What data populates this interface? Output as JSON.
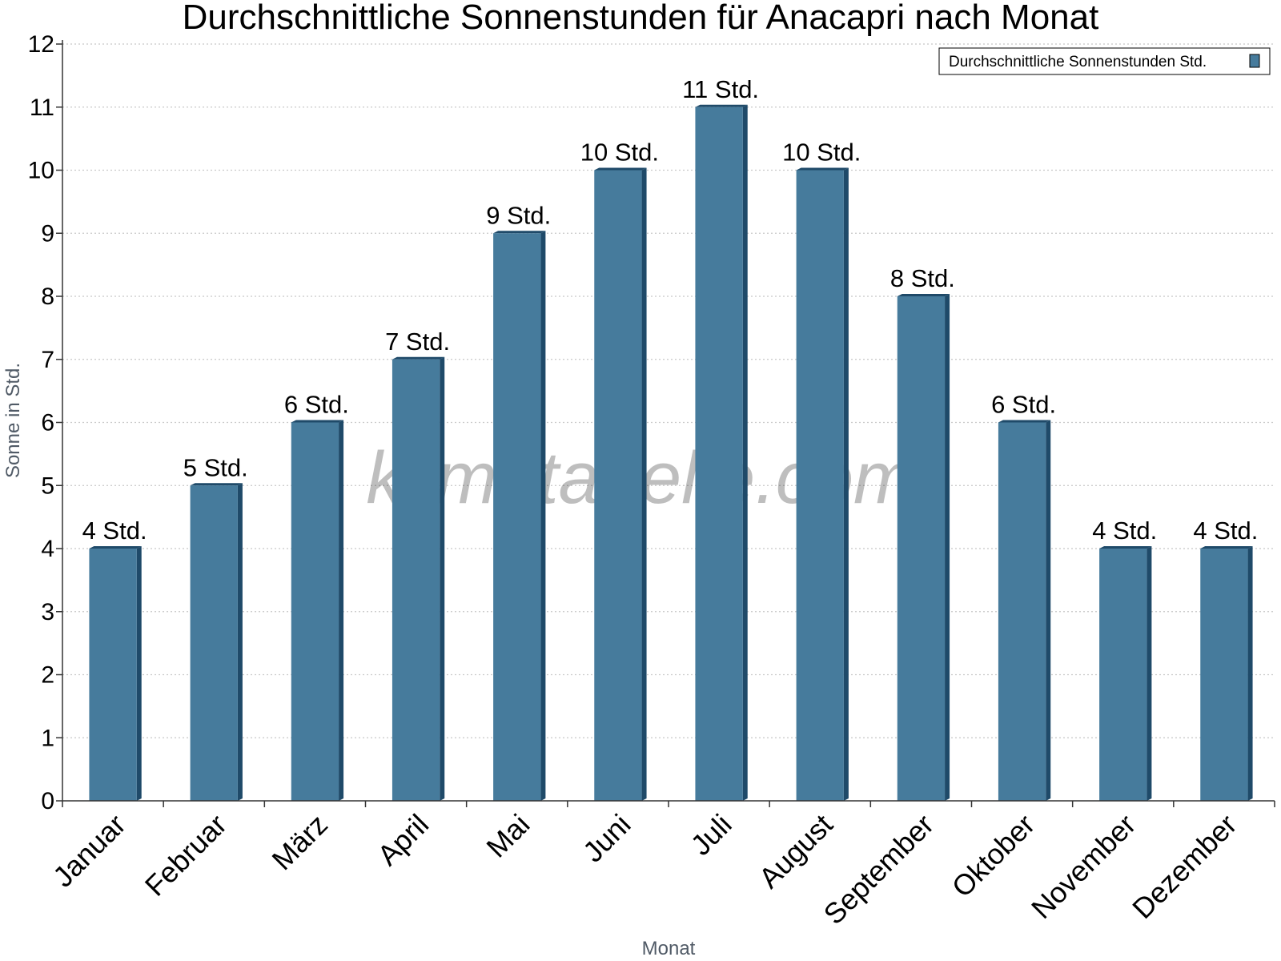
{
  "chart_data": {
    "type": "bar",
    "title": "Durchschnittliche Sonnenstunden für Anacapri nach Monat",
    "xlabel": "Monat",
    "ylabel": "Sonne in Std.",
    "categories": [
      "Januar",
      "Februar",
      "März",
      "April",
      "Mai",
      "Juni",
      "Juli",
      "August",
      "September",
      "Oktober",
      "November",
      "Dezember"
    ],
    "series": [
      {
        "name": "Durchschnittliche Sonnenstunden Std.",
        "values": [
          4,
          5,
          6,
          7,
          9,
          10,
          11,
          10,
          8,
          6,
          4,
          4
        ],
        "labels": [
          "4 Std.",
          "5 Std.",
          "6 Std.",
          "7 Std.",
          "9 Std.",
          "10 Std.",
          "11 Std.",
          "10 Std.",
          "8 Std.",
          "6 Std.",
          "4 Std.",
          "4 Std."
        ]
      }
    ],
    "ylim": [
      0,
      12
    ],
    "yticks": [
      0,
      1,
      2,
      3,
      4,
      5,
      6,
      7,
      8,
      9,
      10,
      11,
      12
    ],
    "grid": true,
    "legend_position": "top-right",
    "colors": {
      "bar": "#467b9c",
      "bar_side": "#1f4a69",
      "grid": "#c8c8c8"
    }
  },
  "watermark": "klimatabelle.com"
}
